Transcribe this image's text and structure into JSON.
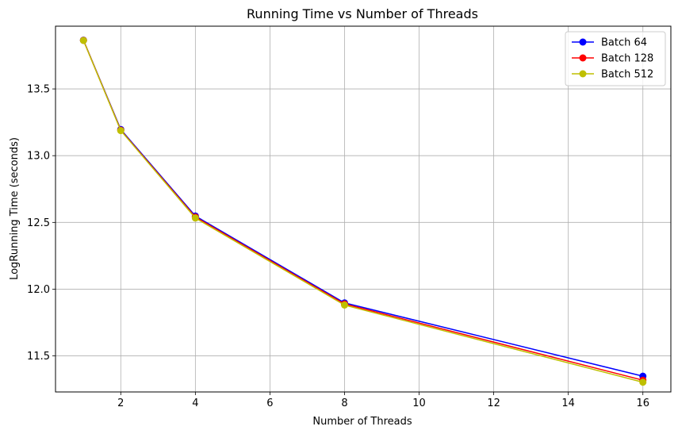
{
  "chart_data": {
    "type": "line",
    "title": "Running Time vs Number of Threads",
    "xlabel": "Number of Threads",
    "ylabel": "LogRunning Time (seconds)",
    "x": [
      1,
      2,
      4,
      8,
      16
    ],
    "xlim": [
      0.25,
      16.75
    ],
    "ylim": [
      11.23,
      13.97
    ],
    "xticks": [
      2,
      4,
      6,
      8,
      10,
      12,
      14,
      16
    ],
    "yticks": [
      11.5,
      12.0,
      12.5,
      13.0,
      13.5
    ],
    "grid": true,
    "legend_position": "top-right",
    "series": [
      {
        "name": "Batch 64",
        "color": "#0000ff",
        "values": [
          13.865,
          13.196,
          12.548,
          11.897,
          11.348
        ]
      },
      {
        "name": "Batch 128",
        "color": "#ff0000",
        "values": [
          13.864,
          13.191,
          12.54,
          11.889,
          11.318
        ]
      },
      {
        "name": "Batch 512",
        "color": "#bfbf00",
        "values": [
          13.863,
          13.188,
          12.533,
          11.881,
          11.303
        ]
      }
    ]
  }
}
